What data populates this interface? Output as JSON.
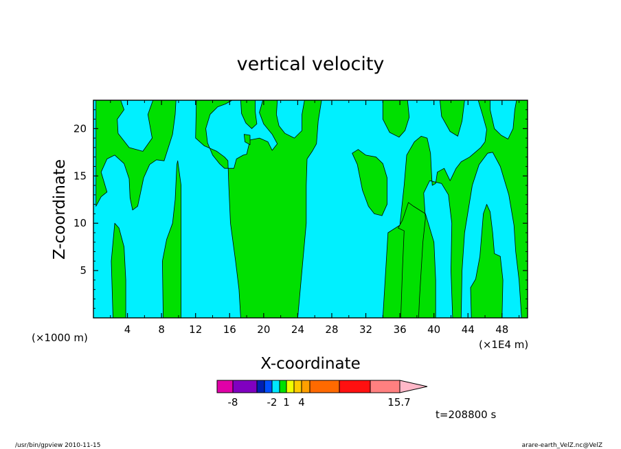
{
  "chart_data": {
    "type": "heatmap",
    "title": "vertical velocity",
    "xlabel": "X-coordinate",
    "ylabel": "Z-coordinate",
    "x_unit_left": "(×1000 m)",
    "x_unit_right": "(×1E4 m)",
    "xlim": [
      0,
      51
    ],
    "ylim": [
      0,
      23
    ],
    "x_ticks": [
      4,
      8,
      12,
      16,
      20,
      24,
      28,
      32,
      36,
      40,
      44,
      48
    ],
    "y_ticks": [
      5,
      10,
      15,
      20
    ],
    "colorbar": {
      "segments": [
        {
          "color": "#e000a8"
        },
        {
          "color": "#8000c0"
        },
        {
          "color": "#0020b0"
        },
        {
          "color": "#0050ff"
        },
        {
          "color": "#00e8ff"
        },
        {
          "color": "#00e000"
        },
        {
          "color": "#f0ff00"
        },
        {
          "color": "#ffcc00"
        },
        {
          "color": "#ffa000"
        },
        {
          "color": "#ff6a00"
        },
        {
          "color": "#ff1010"
        },
        {
          "color": "#ff8080"
        }
      ],
      "arrow_color": "#ffb8c8",
      "labels": [
        "-8",
        "-2",
        "1",
        "4",
        "15.7"
      ]
    },
    "fields": {
      "background_level": "#00e000",
      "negative_level": "#00f0ff"
    },
    "regions": [
      {
        "points": [
          [
            0.3,
            23
          ],
          [
            3.2,
            23
          ],
          [
            3.6,
            22
          ],
          [
            2.8,
            21
          ],
          [
            2.9,
            19.5
          ],
          [
            4.2,
            18
          ],
          [
            5.8,
            17.6
          ],
          [
            6.9,
            19
          ],
          [
            6.4,
            21.5
          ],
          [
            7.0,
            23
          ],
          [
            9.7,
            23
          ],
          [
            9.6,
            21.5
          ],
          [
            9.3,
            19.4
          ],
          [
            8.3,
            16.6
          ],
          [
            7.4,
            16.7
          ],
          [
            6.6,
            16.2
          ],
          [
            5.9,
            14.8
          ],
          [
            5.6,
            13.5
          ],
          [
            5.2,
            11.8
          ],
          [
            4.6,
            11.4
          ],
          [
            4.3,
            12.7
          ],
          [
            4.2,
            14.7
          ],
          [
            3.6,
            16.3
          ],
          [
            2.5,
            17.2
          ],
          [
            1.6,
            16.8
          ],
          [
            0.9,
            15.4
          ],
          [
            1.6,
            13.3
          ],
          [
            0.9,
            12.8
          ],
          [
            0.3,
            11.8
          ]
        ]
      },
      {
        "points": [
          [
            2.3,
            0
          ],
          [
            2.1,
            6
          ],
          [
            2.5,
            10
          ],
          [
            3.0,
            9.5
          ],
          [
            3.6,
            7.5
          ],
          [
            3.8,
            4
          ],
          [
            3.8,
            0
          ]
        ]
      },
      {
        "points": [
          [
            8.2,
            0
          ],
          [
            8.1,
            6
          ],
          [
            8.6,
            8.3
          ],
          [
            9.3,
            10
          ],
          [
            9.6,
            12.5
          ],
          [
            9.8,
            16.2
          ],
          [
            9.9,
            16.6
          ],
          [
            10.3,
            14
          ],
          [
            10.3,
            0
          ]
        ]
      },
      {
        "points": [
          [
            12.1,
            23
          ],
          [
            12.0,
            19
          ],
          [
            13.0,
            18.2
          ],
          [
            14.5,
            17.6
          ],
          [
            15.4,
            17
          ],
          [
            15.8,
            16.6
          ],
          [
            15.9,
            14
          ],
          [
            16.1,
            10
          ],
          [
            16.7,
            6
          ],
          [
            17.1,
            3
          ],
          [
            17.3,
            0
          ],
          [
            24.0,
            0
          ],
          [
            24.3,
            3
          ],
          [
            25.0,
            10
          ],
          [
            25.0,
            14
          ],
          [
            25.1,
            16.8
          ],
          [
            25.7,
            17.6
          ],
          [
            26.2,
            18.4
          ],
          [
            26.4,
            20.8
          ],
          [
            26.8,
            23
          ],
          [
            24.8,
            23
          ],
          [
            24.5,
            21.5
          ],
          [
            24.5,
            19.8
          ],
          [
            23.6,
            19
          ],
          [
            22.5,
            19.5
          ],
          [
            21.8,
            20.3
          ],
          [
            21.5,
            21.5
          ],
          [
            21.6,
            23
          ],
          [
            19.9,
            23
          ],
          [
            19.5,
            21.7
          ],
          [
            20.0,
            20.5
          ],
          [
            21.0,
            19.4
          ],
          [
            21.6,
            18.4
          ],
          [
            21.0,
            17.7
          ],
          [
            20.5,
            18.6
          ],
          [
            19.5,
            19
          ],
          [
            18.4,
            18.8
          ],
          [
            18.0,
            17.3
          ],
          [
            17.6,
            17.2
          ],
          [
            16.8,
            16.8
          ],
          [
            16.5,
            15.8
          ],
          [
            15.4,
            15.8
          ],
          [
            14.8,
            16.3
          ],
          [
            14.0,
            17.2
          ],
          [
            13.4,
            18.5
          ],
          [
            13.2,
            20
          ],
          [
            13.7,
            21.5
          ],
          [
            14.6,
            22.3
          ],
          [
            15.5,
            22.6
          ],
          [
            16.3,
            23
          ]
        ]
      },
      {
        "points": [
          [
            17.3,
            23
          ],
          [
            17.4,
            21.6
          ],
          [
            17.9,
            20.6
          ],
          [
            18.6,
            20
          ],
          [
            19.2,
            20.5
          ],
          [
            19.0,
            21.8
          ],
          [
            19.0,
            23
          ]
        ]
      },
      {
        "points": [
          [
            17.7,
            19.4
          ],
          [
            17.8,
            18.6
          ],
          [
            18.4,
            18.3
          ],
          [
            18.4,
            19.3
          ]
        ]
      },
      {
        "points": [
          [
            30.4,
            17.4
          ],
          [
            31.0,
            16.2
          ],
          [
            31.6,
            13.5
          ],
          [
            32.3,
            11.8
          ],
          [
            33.0,
            11
          ],
          [
            33.9,
            10.8
          ],
          [
            34.5,
            12
          ],
          [
            34.5,
            14.8
          ],
          [
            34.0,
            16.3
          ],
          [
            33.2,
            17
          ],
          [
            32.0,
            17.2
          ],
          [
            31.1,
            17.8
          ]
        ]
      },
      {
        "points": [
          [
            34.0,
            0
          ],
          [
            34.6,
            9
          ],
          [
            36.0,
            9.8
          ],
          [
            36.5,
            14
          ],
          [
            36.8,
            17.2
          ],
          [
            37.7,
            18.6
          ],
          [
            38.5,
            19.2
          ],
          [
            39.2,
            19
          ],
          [
            39.6,
            17.4
          ],
          [
            39.7,
            15.5
          ],
          [
            39.8,
            14
          ],
          [
            40.2,
            14.2
          ],
          [
            40.4,
            15.4
          ],
          [
            41.2,
            15.8
          ],
          [
            41.9,
            14.5
          ],
          [
            42.6,
            15.8
          ],
          [
            43.2,
            16.5
          ],
          [
            44.2,
            17
          ],
          [
            45.5,
            18
          ],
          [
            46.0,
            18.6
          ],
          [
            46.2,
            19.9
          ],
          [
            45.7,
            21.5
          ],
          [
            45.2,
            23
          ],
          [
            46.6,
            23
          ],
          [
            46.6,
            22
          ],
          [
            47.1,
            20
          ],
          [
            47.9,
            19.3
          ],
          [
            48.7,
            18.9
          ],
          [
            49.3,
            20
          ],
          [
            49.5,
            22
          ],
          [
            49.7,
            23
          ],
          [
            51.0,
            23
          ],
          [
            51,
            0
          ],
          [
            50.3,
            0
          ],
          [
            50.0,
            4
          ],
          [
            49.6,
            7
          ],
          [
            49.4,
            9.8
          ],
          [
            48.8,
            13
          ],
          [
            47.8,
            16
          ],
          [
            46.9,
            17.5
          ],
          [
            46.3,
            17.4
          ],
          [
            45.3,
            16.2
          ],
          [
            44.5,
            14
          ],
          [
            43.6,
            9
          ],
          [
            43.3,
            5
          ],
          [
            43.2,
            0
          ],
          [
            42.2,
            0
          ],
          [
            42.0,
            5
          ],
          [
            42.1,
            10
          ],
          [
            41.7,
            13
          ],
          [
            40.9,
            14.2
          ],
          [
            39.5,
            14.5
          ],
          [
            38.8,
            13.2
          ],
          [
            39.0,
            10.5
          ],
          [
            38.7,
            8
          ],
          [
            38.3,
            2
          ],
          [
            38.2,
            0
          ],
          [
            36.1,
            0
          ],
          [
            36.3,
            5
          ],
          [
            36.5,
            9.2
          ],
          [
            35.8,
            9.5
          ],
          [
            36.3,
            10.3
          ],
          [
            37.0,
            12.2
          ],
          [
            37.6,
            11.8
          ],
          [
            39.0,
            11
          ],
          [
            40.0,
            8
          ],
          [
            40.2,
            4
          ],
          [
            40.2,
            0
          ]
        ]
      },
      {
        "points": [
          [
            34.0,
            23
          ],
          [
            34.0,
            21
          ],
          [
            34.8,
            19.6
          ],
          [
            35.9,
            19.1
          ],
          [
            36.6,
            19.8
          ],
          [
            37.1,
            21.2
          ],
          [
            36.9,
            23
          ]
        ]
      },
      {
        "points": [
          [
            40.7,
            23
          ],
          [
            40.9,
            21.3
          ],
          [
            41.9,
            19.7
          ],
          [
            42.8,
            19.2
          ],
          [
            43.3,
            20.8
          ],
          [
            43.6,
            23
          ]
        ]
      },
      {
        "points": [
          [
            44.4,
            0
          ],
          [
            44.3,
            3.2
          ],
          [
            44.9,
            4.1
          ],
          [
            45.4,
            6.5
          ],
          [
            45.8,
            11
          ],
          [
            46.2,
            12
          ],
          [
            46.6,
            11.2
          ],
          [
            46.9,
            9
          ],
          [
            47.1,
            6.8
          ],
          [
            47.8,
            6.5
          ],
          [
            48.1,
            4
          ],
          [
            48.0,
            0
          ]
        ]
      }
    ],
    "annotation": "t=208800 s"
  },
  "footer": {
    "left": "/usr/bin/gpview   2010-11-15",
    "right": "arare-earth_VelZ.nc@VelZ"
  }
}
